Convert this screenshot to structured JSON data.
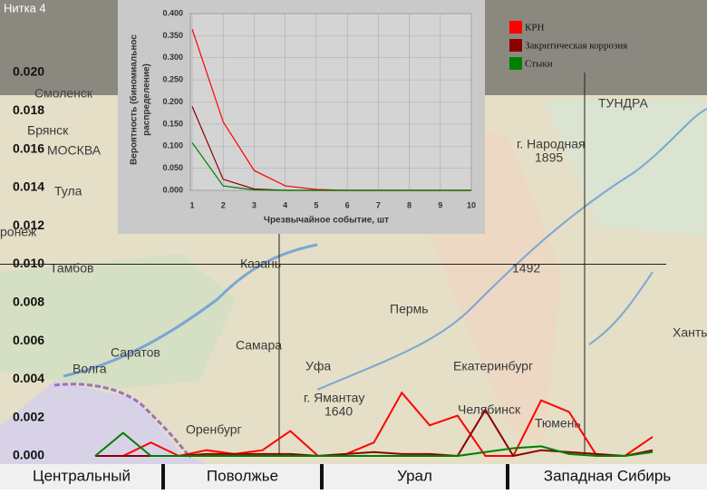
{
  "window_title": "Нитка 4",
  "map_labels": [
    "Смоленск",
    "Брянск",
    "МОСКВА",
    "Тула",
    "ронеж",
    "Тамбов",
    "Казань",
    "Пермь",
    "Самара",
    "Уфа",
    "Екатеринбург",
    "Саратов",
    "Волга",
    "Оренбург",
    "Челябинск",
    "Тюмень",
    "Ханты-",
    "ТУНДРА",
    "г. Народная",
    "1895",
    "г. Ямантау",
    "1640",
    "1492"
  ],
  "chart_data": [
    {
      "type": "line",
      "ylabel": [
        "Вероятность (биномиальнос",
        "распределение)"
      ],
      "xlabel": "Чрезвычайное событие, шт",
      "x": [
        1,
        2,
        3,
        4,
        5,
        6,
        7,
        8,
        9,
        10
      ],
      "xlim": [
        1,
        10
      ],
      "xticks": [
        1,
        2,
        3,
        4,
        5,
        6,
        7,
        8,
        9,
        10
      ],
      "ylim": [
        0,
        0.4
      ],
      "yticks": [
        {
          "value": 0,
          "label": "0.000"
        },
        {
          "value": 0.05,
          "label": "0.050"
        },
        {
          "value": 0.1,
          "label": "0.100"
        },
        {
          "value": 0.15,
          "label": "0.150"
        },
        {
          "value": 0.2,
          "label": "0.200"
        },
        {
          "value": 0.25,
          "label": "0.250"
        },
        {
          "value": 0.3,
          "label": "0.300"
        },
        {
          "value": 0.35,
          "label": "0.350"
        },
        {
          "value": 0.4,
          "label": "0.400"
        }
      ],
      "grid": true,
      "series": [
        {
          "name": "КРН",
          "color": "#ff0000",
          "values": [
            0.365,
            0.155,
            0.045,
            0.01,
            0.002,
            0,
            0,
            0,
            0,
            0
          ]
        },
        {
          "name": "Закритическая коррозия",
          "color": "#8b0000",
          "values": [
            0.19,
            0.025,
            0.003,
            0,
            0,
            0,
            0,
            0,
            0,
            0
          ]
        },
        {
          "name": "Стыки",
          "color": "#008000",
          "values": [
            0.108,
            0.01,
            0.001,
            0,
            0,
            0,
            0,
            0,
            0,
            0
          ]
        }
      ]
    },
    {
      "type": "line",
      "ylim": [
        0,
        0.02
      ],
      "yticks": [
        {
          "value": 0,
          "label": "0.000"
        },
        {
          "value": 0.002,
          "label": "0.002"
        },
        {
          "value": 0.004,
          "label": "0.004"
        },
        {
          "value": 0.006,
          "label": "0.006"
        },
        {
          "value": 0.008,
          "label": "0.008"
        },
        {
          "value": 0.01,
          "label": "0.010"
        },
        {
          "value": 0.012,
          "label": "0.012"
        },
        {
          "value": 0.014,
          "label": "0.014"
        },
        {
          "value": 0.016,
          "label": "0.016"
        },
        {
          "value": 0.018,
          "label": "0.018"
        },
        {
          "value": 0.02,
          "label": "0.020"
        }
      ],
      "regions": [
        "Центральный",
        "Поволжье",
        "Урал",
        "Западная Сибирь"
      ],
      "series": [
        {
          "color": "#ff0000",
          "values": [
            0,
            0,
            0.0007,
            0,
            0.0003,
            0.0001,
            0.0003,
            0.0013,
            0,
            0.0001,
            0.0007,
            0.0033,
            0.0016,
            0.0021,
            0,
            0,
            0.0029,
            0.0023,
            0,
            0,
            0.001
          ]
        },
        {
          "color": "#8b0000",
          "values": [
            0,
            0,
            0,
            0,
            0.0001,
            0.0001,
            0.0001,
            0.0001,
            0,
            0.0001,
            0.0002,
            0.0001,
            0.0001,
            0,
            0.0024,
            0,
            0.0003,
            0.0002,
            0.0001,
            0,
            0.0003
          ]
        },
        {
          "color": "#008000",
          "values": [
            0,
            0.0012,
            0,
            0,
            0,
            0,
            0,
            0,
            0,
            0,
            0,
            0,
            0,
            0,
            0.0002,
            0.0004,
            0.0005,
            0.0001,
            0,
            0,
            0.0002
          ]
        }
      ]
    }
  ]
}
